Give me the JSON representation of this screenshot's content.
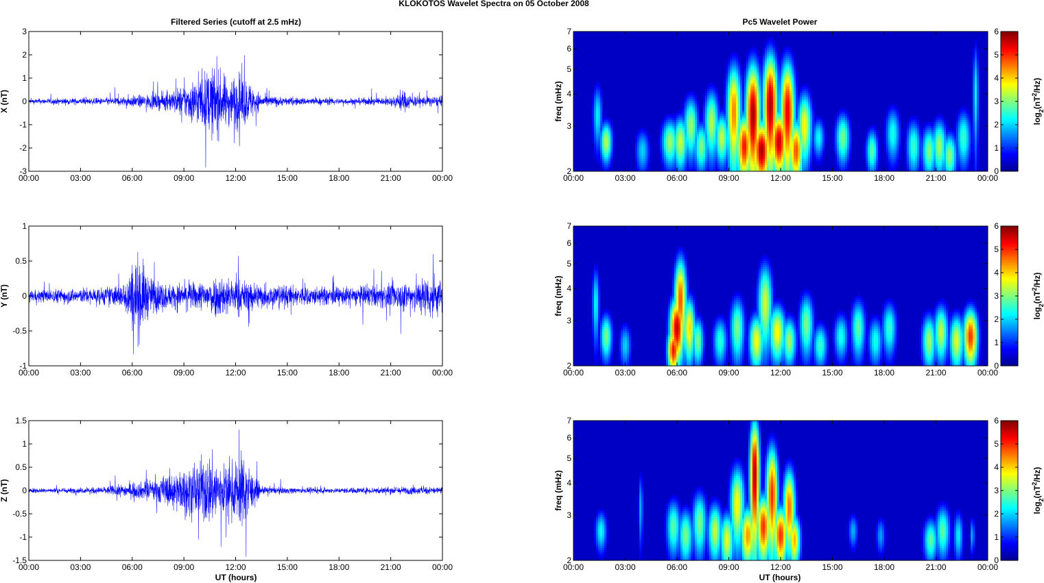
{
  "figure": {
    "suptitle": "KLOKOTOS Wavelet Spectra on 05 October   2008",
    "left_title": "Filtered Series (cutoff at 2.5 mHz)",
    "right_title": "Pc5 Wavelet Power",
    "xlabel": "UT (hours)",
    "freq_label": "freq (mHz)",
    "colorbar_label": "log2(nT2/Hz)"
  },
  "colors": {
    "trace": "#0000ff",
    "axes": "#000000",
    "tick_color": "#000000"
  },
  "chart_data": [
    {
      "type": "line",
      "name": "X",
      "ylabel": "X (nT)",
      "xlim": [
        0,
        24
      ],
      "ylim": [
        -3,
        3
      ],
      "x_ticks": [
        "00:00",
        "03:00",
        "06:00",
        "09:00",
        "12:00",
        "15:00",
        "18:00",
        "21:00",
        "00:00"
      ],
      "y_ticks": [
        "-3",
        "-2",
        "-1",
        "0",
        "1",
        "2",
        "3"
      ],
      "envelope": [
        [
          0,
          0.15
        ],
        [
          2,
          0.2
        ],
        [
          4,
          0.2
        ],
        [
          5.5,
          0.3
        ],
        [
          7,
          0.45
        ],
        [
          8,
          0.55
        ],
        [
          9,
          1.0
        ],
        [
          10,
          1.7
        ],
        [
          10.7,
          2.2
        ],
        [
          11.5,
          1.5
        ],
        [
          12.3,
          1.8
        ],
        [
          13,
          1.0
        ],
        [
          13.5,
          0.4
        ],
        [
          15,
          0.25
        ],
        [
          18,
          0.2
        ],
        [
          21,
          0.25
        ],
        [
          21.7,
          0.7
        ],
        [
          22.3,
          0.35
        ],
        [
          24,
          0.3
        ]
      ]
    },
    {
      "type": "line",
      "name": "Y",
      "ylabel": "Y (nT)",
      "xlim": [
        0,
        24
      ],
      "ylim": [
        -1,
        1
      ],
      "x_ticks": [
        "00:00",
        "03:00",
        "06:00",
        "09:00",
        "12:00",
        "15:00",
        "18:00",
        "21:00",
        "00:00"
      ],
      "y_ticks": [
        "-1",
        "-0.5",
        "0",
        "0.5",
        "1"
      ],
      "envelope": [
        [
          0,
          0.12
        ],
        [
          2,
          0.15
        ],
        [
          4,
          0.17
        ],
        [
          5.5,
          0.25
        ],
        [
          5.9,
          0.65
        ],
        [
          6.4,
          0.9
        ],
        [
          7,
          0.4
        ],
        [
          8,
          0.25
        ],
        [
          10,
          0.3
        ],
        [
          11,
          0.45
        ],
        [
          12,
          0.35
        ],
        [
          14,
          0.25
        ],
        [
          16,
          0.2
        ],
        [
          18,
          0.18
        ],
        [
          21,
          0.25
        ],
        [
          23.5,
          0.45
        ],
        [
          24,
          0.35
        ]
      ]
    },
    {
      "type": "line",
      "name": "Z",
      "ylabel": "Z (nT)",
      "xlim": [
        0,
        24
      ],
      "ylim": [
        -1.5,
        1.5
      ],
      "x_ticks": [
        "00:00",
        "03:00",
        "06:00",
        "09:00",
        "12:00",
        "15:00",
        "18:00",
        "21:00",
        "00:00"
      ],
      "y_ticks": [
        "-1.5",
        "-1",
        "-0.5",
        "0",
        "0.5",
        "1",
        "1.5"
      ],
      "envelope": [
        [
          0,
          0.07
        ],
        [
          2,
          0.08
        ],
        [
          4,
          0.1
        ],
        [
          5.5,
          0.2
        ],
        [
          7,
          0.3
        ],
        [
          8.5,
          0.6
        ],
        [
          9.5,
          0.8
        ],
        [
          10.5,
          1.15
        ],
        [
          11.5,
          0.75
        ],
        [
          12.5,
          1.2
        ],
        [
          13,
          0.5
        ],
        [
          13.5,
          0.12
        ],
        [
          16,
          0.08
        ],
        [
          18,
          0.08
        ],
        [
          21,
          0.12
        ],
        [
          24,
          0.12
        ]
      ]
    },
    {
      "type": "heatmap",
      "name": "Pc5 Wavelet Power (X)",
      "ylabel": "freq (mHz)",
      "log_y": true,
      "xlim": [
        0,
        24
      ],
      "ylim": [
        2,
        7
      ],
      "clim": [
        0,
        6
      ],
      "y_ticks": [
        "2",
        "3",
        "4",
        "5",
        "6",
        "7"
      ],
      "colorbar_ticks": [
        "0",
        "1",
        "2",
        "3",
        "4",
        "5",
        "6"
      ],
      "blobs": [
        [
          1.4,
          3.3,
          0.2,
          0.7,
          2.2
        ],
        [
          1.9,
          2.6,
          0.25,
          0.35,
          3.4
        ],
        [
          4.0,
          2.4,
          0.3,
          0.35,
          2
        ],
        [
          5.6,
          2.6,
          0.35,
          0.4,
          3.2
        ],
        [
          6.2,
          2.6,
          0.3,
          0.45,
          3.5
        ],
        [
          6.8,
          3.0,
          0.3,
          0.6,
          3.2
        ],
        [
          7.4,
          2.5,
          0.3,
          0.4,
          3
        ],
        [
          8.0,
          3.1,
          0.3,
          0.7,
          3.3
        ],
        [
          8.6,
          2.7,
          0.3,
          0.45,
          3.4
        ],
        [
          9.3,
          3.4,
          0.3,
          1.2,
          4.5
        ],
        [
          9.9,
          2.5,
          0.3,
          0.55,
          5.2
        ],
        [
          10.4,
          3.3,
          0.3,
          1.3,
          5.8
        ],
        [
          10.9,
          2.4,
          0.35,
          0.5,
          5.8
        ],
        [
          11.4,
          3.6,
          0.3,
          1.4,
          5.8
        ],
        [
          11.9,
          2.6,
          0.35,
          0.55,
          5.6
        ],
        [
          12.4,
          3.4,
          0.3,
          1.3,
          5.4
        ],
        [
          12.9,
          2.4,
          0.3,
          0.5,
          4.8
        ],
        [
          13.4,
          3.0,
          0.3,
          0.7,
          3.8
        ],
        [
          14.2,
          2.7,
          0.25,
          0.35,
          2.3
        ],
        [
          15.6,
          2.7,
          0.3,
          0.45,
          3
        ],
        [
          17.3,
          2.4,
          0.25,
          0.35,
          2.8
        ],
        [
          18.5,
          2.8,
          0.3,
          0.5,
          2.4
        ],
        [
          19.7,
          2.5,
          0.3,
          0.45,
          2.6
        ],
        [
          20.6,
          2.4,
          0.3,
          0.4,
          3
        ],
        [
          21.2,
          2.5,
          0.3,
          0.45,
          3.2
        ],
        [
          21.8,
          2.3,
          0.3,
          0.35,
          3.1
        ],
        [
          22.6,
          2.7,
          0.3,
          0.5,
          2.6
        ],
        [
          23.3,
          4.0,
          0.12,
          1.5,
          2.2
        ]
      ]
    },
    {
      "type": "heatmap",
      "name": "Pc5 Wavelet Power (Y)",
      "ylabel": "freq (mHz)",
      "log_y": true,
      "xlim": [
        0,
        24
      ],
      "ylim": [
        2,
        7
      ],
      "clim": [
        0,
        6
      ],
      "y_ticks": [
        "2",
        "3",
        "4",
        "5",
        "6",
        "7"
      ],
      "colorbar_ticks": [
        "0",
        "1",
        "2",
        "3",
        "4",
        "5",
        "6"
      ],
      "blobs": [
        [
          1.3,
          3.5,
          0.15,
          0.9,
          2.3
        ],
        [
          1.9,
          2.6,
          0.25,
          0.4,
          3
        ],
        [
          3.0,
          2.4,
          0.25,
          0.35,
          2
        ],
        [
          5.8,
          2.3,
          0.25,
          0.35,
          5.2
        ],
        [
          6.0,
          2.8,
          0.3,
          0.6,
          5.6
        ],
        [
          6.2,
          3.6,
          0.25,
          1.1,
          4.8
        ],
        [
          6.7,
          2.8,
          0.25,
          0.6,
          4
        ],
        [
          7.2,
          2.5,
          0.25,
          0.4,
          3
        ],
        [
          8.5,
          2.5,
          0.3,
          0.4,
          2.5
        ],
        [
          9.5,
          2.8,
          0.3,
          0.6,
          3
        ],
        [
          10.6,
          2.5,
          0.3,
          0.45,
          3.8
        ],
        [
          11.1,
          3.5,
          0.3,
          1.0,
          3.5
        ],
        [
          11.8,
          2.7,
          0.35,
          0.5,
          3.8
        ],
        [
          12.5,
          2.5,
          0.3,
          0.4,
          3.2
        ],
        [
          13.5,
          2.9,
          0.3,
          0.6,
          3
        ],
        [
          14.3,
          2.4,
          0.3,
          0.35,
          2.6
        ],
        [
          15.5,
          2.6,
          0.3,
          0.4,
          2.4
        ],
        [
          16.5,
          2.8,
          0.3,
          0.55,
          2.8
        ],
        [
          17.5,
          2.5,
          0.3,
          0.4,
          2.4
        ],
        [
          18.3,
          2.8,
          0.3,
          0.5,
          2.6
        ],
        [
          20.6,
          2.5,
          0.3,
          0.45,
          3.2
        ],
        [
          21.3,
          2.7,
          0.3,
          0.5,
          3.4
        ],
        [
          22.2,
          2.5,
          0.3,
          0.45,
          3.6
        ],
        [
          23.0,
          2.6,
          0.3,
          0.5,
          5
        ]
      ]
    },
    {
      "type": "heatmap",
      "name": "Pc5 Wavelet Power (Z)",
      "ylabel": "freq (mHz)",
      "log_y": true,
      "xlim": [
        0,
        24
      ],
      "ylim": [
        2,
        7
      ],
      "clim": [
        0,
        6
      ],
      "y_ticks": [
        "2",
        "3",
        "4",
        "5",
        "6",
        "7"
      ],
      "colorbar_ticks": [
        "0",
        "1",
        "2",
        "3",
        "4",
        "5",
        "6"
      ],
      "blobs": [
        [
          1.6,
          2.6,
          0.25,
          0.35,
          2.3
        ],
        [
          3.9,
          3.2,
          0.1,
          0.8,
          1.8
        ],
        [
          5.8,
          2.7,
          0.3,
          0.5,
          2.8
        ],
        [
          6.5,
          2.5,
          0.3,
          0.45,
          3
        ],
        [
          7.3,
          2.8,
          0.3,
          0.6,
          3
        ],
        [
          8.2,
          2.6,
          0.3,
          0.5,
          3.4
        ],
        [
          8.9,
          2.4,
          0.3,
          0.45,
          3.6
        ],
        [
          9.5,
          3.3,
          0.3,
          0.9,
          3.8
        ],
        [
          10.1,
          2.5,
          0.3,
          0.5,
          4.4
        ],
        [
          10.5,
          4.3,
          0.2,
          1.8,
          5.8
        ],
        [
          11.0,
          2.7,
          0.3,
          0.6,
          5
        ],
        [
          11.5,
          3.6,
          0.25,
          1.3,
          5
        ],
        [
          12.0,
          2.5,
          0.3,
          0.5,
          5
        ],
        [
          12.5,
          3.2,
          0.25,
          0.9,
          4.6
        ],
        [
          12.8,
          2.4,
          0.25,
          0.4,
          4.2
        ],
        [
          16.2,
          2.6,
          0.2,
          0.3,
          1.8
        ],
        [
          17.8,
          2.5,
          0.2,
          0.3,
          1.7
        ],
        [
          20.7,
          2.4,
          0.3,
          0.35,
          2.8
        ],
        [
          21.4,
          2.6,
          0.3,
          0.45,
          2.8
        ],
        [
          22.3,
          2.5,
          0.2,
          0.4,
          2.2
        ],
        [
          23.1,
          2.5,
          0.1,
          0.3,
          1.8
        ]
      ]
    }
  ]
}
